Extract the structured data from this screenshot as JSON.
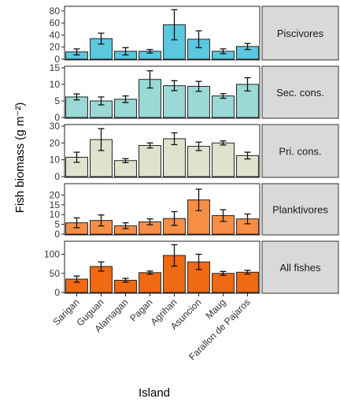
{
  "chart_data": {
    "type": "bar",
    "facet_layout": "vertical",
    "shared_x": true,
    "categories": [
      "Sarigan",
      "Guguan",
      "Alamagan",
      "Pagan",
      "Agrihan",
      "Asuncion",
      "Maug",
      "Farallon de Pajaros"
    ],
    "xlabel": "Island",
    "ylabel": "Fish biomass (g m⁻²)",
    "grid": false,
    "legend": "none",
    "error_bars": true,
    "panels": [
      {
        "name": "Piscivores",
        "color": "#5bc8e0",
        "ylim": [
          0,
          85
        ],
        "yticks": [
          "0",
          "20",
          "40",
          "60",
          "80"
        ],
        "values": [
          12,
          34,
          13,
          13,
          57,
          33,
          13,
          21
        ],
        "errors": [
          5,
          9,
          6,
          3,
          25,
          14,
          4,
          5
        ]
      },
      {
        "name": "Sec. cons.",
        "color": "#9ad9d6",
        "ylim": [
          0,
          15
        ],
        "yticks": [
          "0",
          "5",
          "10",
          "15"
        ],
        "values": [
          6.2,
          5.0,
          5.5,
          11.5,
          9.6,
          9.4,
          6.5,
          10.0
        ],
        "errors": [
          0.9,
          1.2,
          1.0,
          2.6,
          1.5,
          1.5,
          0.7,
          2.0
        ]
      },
      {
        "name": "Pri. cons.",
        "color": "#dfe3cd",
        "ylim": [
          0,
          30
        ],
        "yticks": [
          "0",
          "10",
          "20",
          "30"
        ],
        "values": [
          11.5,
          22,
          9.5,
          18.5,
          22.5,
          18,
          20,
          12.5
        ],
        "errors": [
          3,
          6.5,
          1.2,
          1.5,
          3.5,
          2.5,
          1.2,
          2
        ]
      },
      {
        "name": "Planktivores",
        "color": "#f68e46",
        "ylim": [
          0,
          25
        ],
        "yticks": [
          "0",
          "5",
          "10",
          "15",
          "20"
        ],
        "values": [
          5.8,
          7.0,
          4.3,
          6.3,
          8.0,
          17.5,
          9.5,
          7.8
        ],
        "errors": [
          2.5,
          2.8,
          1.5,
          1.5,
          3.5,
          5.5,
          3,
          2.5
        ]
      },
      {
        "name": "All fishes",
        "color": "#f06a13",
        "ylim": [
          0,
          130
        ],
        "yticks": [
          "0",
          "50",
          "100"
        ],
        "values": [
          35,
          68,
          32,
          52,
          97,
          80,
          50,
          53
        ],
        "errors": [
          8,
          12,
          5,
          4,
          28,
          20,
          5,
          5
        ]
      }
    ]
  }
}
